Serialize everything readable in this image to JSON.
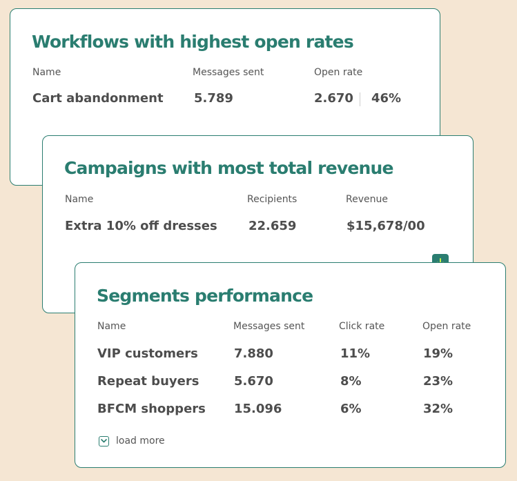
{
  "colors": {
    "background": "#f5e6d3",
    "card": "#ffffff",
    "accent": "#2a7d70",
    "text": "#4d4d4d",
    "label": "#555555",
    "arrow": "#c6f04a"
  },
  "workflows": {
    "title": "Workflows with highest open rates",
    "columns": [
      "Name",
      "Messages sent",
      "Open rate"
    ],
    "row": {
      "name": "Cart abandonment",
      "messages_sent": "5.789",
      "opens": "2.670",
      "open_rate": "46%"
    }
  },
  "campaigns": {
    "title": "Campaigns with most total revenue",
    "columns": [
      "Name",
      "Recipients",
      "Revenue"
    ],
    "row": {
      "name": "Extra 10% off dresses",
      "recipients": "22.659",
      "revenue": "$15,678/00"
    }
  },
  "segments": {
    "title": "Segments performance",
    "columns": [
      "Name",
      "Messages sent",
      "Click rate",
      "Open rate"
    ],
    "rows": [
      {
        "name": "VIP customers",
        "messages_sent": "7.880",
        "click_rate": "11%",
        "open_rate": "19%"
      },
      {
        "name": "Repeat buyers",
        "messages_sent": "5.670",
        "click_rate": "8%",
        "open_rate": "23%"
      },
      {
        "name": "BFCM shoppers",
        "messages_sent": "15.096",
        "click_rate": "6%",
        "open_rate": "32%"
      }
    ],
    "load_more": "load more",
    "load_more_icon": "chevron-down-icon",
    "badge_icon": "arrow-down-icon"
  }
}
